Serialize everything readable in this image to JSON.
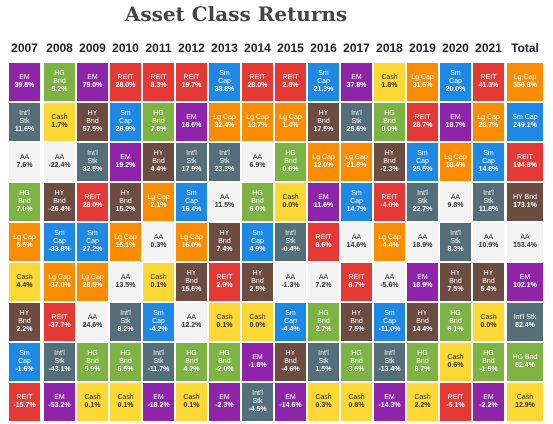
{
  "title": "Asset Class Returns",
  "palette": {
    "EM": "#8e24aa",
    "HG Bnd": "#7cb342",
    "REIT": "#e53935",
    "Sm Cap": "#1e88e5",
    "Cash": "#fdd835",
    "Lg Cap": "#fb8c00",
    "Int'l Stk": "#546e7a",
    "HY Bnd": "#6d4c41",
    "AA": "#f3f3f3"
  },
  "text_colors": {
    "Cash": "#333333",
    "AA": "#333333",
    "default": "#ffffff"
  },
  "chart_data": {
    "type": "table",
    "title": "Asset Class Returns",
    "columns": [
      "2007",
      "2008",
      "2009",
      "2010",
      "2011",
      "2012",
      "2013",
      "2014",
      "2015",
      "2016",
      "2017",
      "2018",
      "2019",
      "2020",
      "2021",
      "Total"
    ],
    "data": [
      [
        [
          "EM",
          "39.8%"
        ],
        [
          "HG Bnd",
          "5.2%"
        ],
        [
          "EM",
          "79.0%"
        ],
        [
          "REIT",
          "28.0%"
        ],
        [
          "REIT",
          "8.3%"
        ],
        [
          "REIT",
          "19.7%"
        ],
        [
          "Sm Cap",
          "38.8%"
        ],
        [
          "REIT",
          "28.0%"
        ],
        [
          "REIT",
          "2.8%"
        ],
        [
          "Sm Cap",
          "21.3%"
        ],
        [
          "EM",
          "37.8%"
        ],
        [
          "Cash",
          "1.8%"
        ],
        [
          "Lg Cap",
          "31.5%"
        ],
        [
          "Sm Cap",
          "20.0%"
        ],
        [
          "REIT",
          "41.3%"
        ],
        [
          "Lg Cap",
          "356.8%"
        ]
      ],
      [
        [
          "Int'l Stk",
          "11.6%"
        ],
        [
          "Cash",
          "1.7%"
        ],
        [
          "HY Bnd",
          "57.5%"
        ],
        [
          "Sm Cap",
          "26.9%"
        ],
        [
          "HG Bnd",
          "7.8%"
        ],
        [
          "EM",
          "18.6%"
        ],
        [
          "Lg Cap",
          "32.4%"
        ],
        [
          "Lg Cap",
          "13.7%"
        ],
        [
          "Lg Cap",
          "1.4%"
        ],
        [
          "HY Bnd",
          "17.5%"
        ],
        [
          "Int'l Stk",
          "25.6%"
        ],
        [
          "HG Bnd",
          "0.0%"
        ],
        [
          "REIT",
          "28.7%"
        ],
        [
          "EM",
          "18.7%"
        ],
        [
          "Lg Cap",
          "28.7%"
        ],
        [
          "Sm Cap",
          "249.1%"
        ]
      ],
      [
        [
          "AA",
          "7.6%"
        ],
        [
          "AA",
          "-22.4%"
        ],
        [
          "Int'l Stk",
          "32.5%"
        ],
        [
          "EM",
          "19.2%"
        ],
        [
          "HY Bnd",
          "4.4%"
        ],
        [
          "Int'l Stk",
          "17.9%"
        ],
        [
          "Int'l Stk",
          "23.3%"
        ],
        [
          "AA",
          "6.9%"
        ],
        [
          "HG Bnd",
          "0.6%"
        ],
        [
          "Lg Cap",
          "12.0%"
        ],
        [
          "Lg Cap",
          "21.8%"
        ],
        [
          "HY Bnd",
          "-2.3%"
        ],
        [
          "Sm Cap",
          "25.5%"
        ],
        [
          "Lg Cap",
          "18.4%"
        ],
        [
          "Sm Cap",
          "14.8%"
        ],
        [
          "REIT",
          "194.8%"
        ]
      ],
      [
        [
          "HG Bnd",
          "7.0%"
        ],
        [
          "HY Bnd",
          "-26.4%"
        ],
        [
          "REIT",
          "28.0%"
        ],
        [
          "HY Bnd",
          "15.2%"
        ],
        [
          "Lg Cap",
          "2.1%"
        ],
        [
          "Sm Cap",
          "16.4%"
        ],
        [
          "AA",
          "11.5%"
        ],
        [
          "HG Bnd",
          "6.0%"
        ],
        [
          "Cash",
          "0.0%"
        ],
        [
          "EM",
          "11.6%"
        ],
        [
          "Sm Cap",
          "14.7%"
        ],
        [
          "REIT",
          "-4.0%"
        ],
        [
          "Int'l Stk",
          "22.7%"
        ],
        [
          "AA",
          "9.8%"
        ],
        [
          "Int'l Stk",
          "11.8%"
        ],
        [
          "HY Bnd",
          "173.1%"
        ]
      ],
      [
        [
          "Lg Cap",
          "5.5%"
        ],
        [
          "Sm Cap",
          "-33.8%"
        ],
        [
          "Sm Cap",
          "27.2%"
        ],
        [
          "Lg Cap",
          "15.1%"
        ],
        [
          "AA",
          "0.3%"
        ],
        [
          "Lg Cap",
          "16.0%"
        ],
        [
          "HY Bnd",
          "7.4%"
        ],
        [
          "Sm Cap",
          "4.9%"
        ],
        [
          "Int'l Stk",
          "-0.4%"
        ],
        [
          "REIT",
          "8.6%"
        ],
        [
          "AA",
          "14.6%"
        ],
        [
          "Lg Cap",
          "-4.4%"
        ],
        [
          "AA",
          "18.9%"
        ],
        [
          "Int'l Stk",
          "8.3%"
        ],
        [
          "AA",
          "10.9%"
        ],
        [
          "AA",
          "153.4%"
        ]
      ],
      [
        [
          "Cash",
          "4.4%"
        ],
        [
          "Lg Cap",
          "-37.0%"
        ],
        [
          "Lg Cap",
          "26.5%"
        ],
        [
          "AA",
          "13.5%"
        ],
        [
          "Cash",
          "0.1%"
        ],
        [
          "HY Bnd",
          "15.6%"
        ],
        [
          "REIT",
          "2.9%"
        ],
        [
          "HY Bnd",
          "2.5%"
        ],
        [
          "AA",
          "-1.3%"
        ],
        [
          "AA",
          "7.2%"
        ],
        [
          "REIT",
          "8.7%"
        ],
        [
          "AA",
          "-5.6%"
        ],
        [
          "EM",
          "18.9%"
        ],
        [
          "HY Bnd",
          "7.5%"
        ],
        [
          "HY Bnd",
          "5.4%"
        ],
        [
          "EM",
          "102.1%"
        ]
      ],
      [
        [
          "HY Bnd",
          "2.2%"
        ],
        [
          "REIT",
          "-37.7%"
        ],
        [
          "AA",
          "24.6%"
        ],
        [
          "Int'l Stk",
          "8.2%"
        ],
        [
          "Sm Cap",
          "-4.2%"
        ],
        [
          "AA",
          "12.2%"
        ],
        [
          "Cash",
          "0.1%"
        ],
        [
          "Cash",
          "0.0%"
        ],
        [
          "Sm Cap",
          "-4.4%"
        ],
        [
          "HG Bnd",
          "2.7%"
        ],
        [
          "HY Bnd",
          "7.5%"
        ],
        [
          "Sm Cap",
          "-11.0%"
        ],
        [
          "HY Bnd",
          "14.4%"
        ],
        [
          "HG Bnd",
          "6.1%"
        ],
        [
          "Cash",
          "0.0%"
        ],
        [
          "Int'l Stk",
          "82.4%"
        ]
      ],
      [
        [
          "Sm Cap",
          "-1.6%"
        ],
        [
          "Int'l Stk",
          "-43.1%"
        ],
        [
          "HG Bnd",
          "5.9%"
        ],
        [
          "HG Bnd",
          "6.5%"
        ],
        [
          "Int'l Stk",
          "-11.7%"
        ],
        [
          "HG Bnd",
          "4.2%"
        ],
        [
          "HG Bnd",
          "-2.0%"
        ],
        [
          "EM",
          "-1.8%"
        ],
        [
          "HY Bnd",
          "-4.6%"
        ],
        [
          "Int'l Stk",
          "1.5%"
        ],
        [
          "HG Bnd",
          "3.5%"
        ],
        [
          "Int'l Stk",
          "-13.4%"
        ],
        [
          "HG Bnd",
          "8.7%"
        ],
        [
          "Cash",
          "0.6%"
        ],
        [
          "HG Bnd",
          "-1.5%"
        ],
        [
          "HG Bnd",
          "82.4%"
        ]
      ],
      [
        [
          "REIT",
          "-15.7%"
        ],
        [
          "EM",
          "-53.2%"
        ],
        [
          "Cash",
          "0.1%"
        ],
        [
          "Cash",
          "0.1%"
        ],
        [
          "EM",
          "-18.2%"
        ],
        [
          "Cash",
          "0.1%"
        ],
        [
          "EM",
          "-2.3%"
        ],
        [
          "Int'l Stk",
          "-4.5%"
        ],
        [
          "EM",
          "-14.6%"
        ],
        [
          "Cash",
          "0.3%"
        ],
        [
          "Cash",
          "0.8%"
        ],
        [
          "EM",
          "-14.3%"
        ],
        [
          "Cash",
          "2.2%"
        ],
        [
          "REIT",
          "-5.1%"
        ],
        [
          "EM",
          "-2.2%"
        ],
        [
          "Cash",
          "12.9%"
        ]
      ]
    ]
  }
}
